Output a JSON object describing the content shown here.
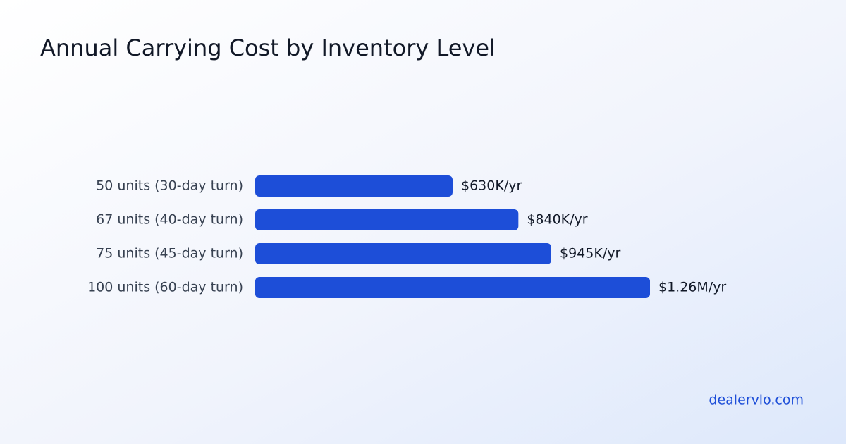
{
  "chart_data": {
    "type": "bar",
    "orientation": "horizontal",
    "title": "Annual Carrying Cost by Inventory Level",
    "categories": [
      "50 units (30-day turn)",
      "67 units (40-day turn)",
      "75 units (45-day turn)",
      "100 units (60-day turn)"
    ],
    "values": [
      630000,
      840000,
      945000,
      1260000
    ],
    "value_labels": [
      "$630K/yr",
      "$840K/yr",
      "$945K/yr",
      "$1.26M/yr"
    ],
    "color": "#1d4ed8"
  },
  "footer": "dealervlo.com"
}
